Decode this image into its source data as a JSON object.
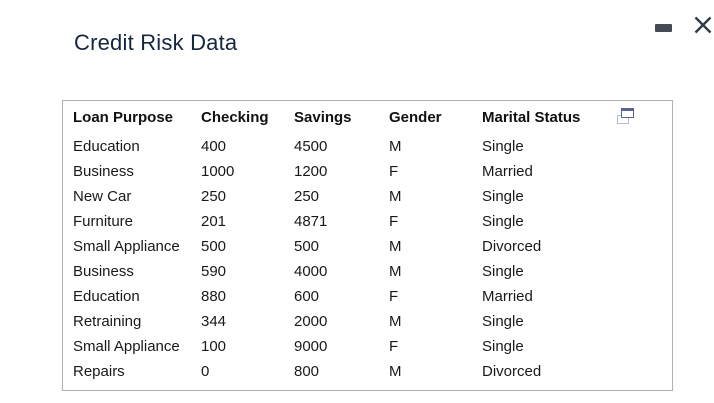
{
  "window": {
    "title": "Credit Risk Data",
    "controls": {
      "minimize_label": "Minimize",
      "close_label": "Close"
    }
  },
  "table": {
    "columns": [
      "Loan Purpose",
      "Checking",
      "Savings",
      "Gender",
      "Marital Status"
    ],
    "rows": [
      [
        "Education",
        "400",
        "4500",
        "M",
        "Single"
      ],
      [
        "Business",
        "1000",
        "1200",
        "F",
        "Married"
      ],
      [
        "New Car",
        "250",
        "250",
        "M",
        "Single"
      ],
      [
        "Furniture",
        "201",
        "4871",
        "F",
        "Single"
      ],
      [
        "Small Appliance",
        "500",
        "500",
        "M",
        "Divorced"
      ],
      [
        "Business",
        "590",
        "4000",
        "M",
        "Single"
      ],
      [
        "Education",
        "880",
        "600",
        "F",
        "Married"
      ],
      [
        "Retraining",
        "344",
        "2000",
        "M",
        "Single"
      ],
      [
        "Small Appliance",
        "100",
        "9000",
        "F",
        "Single"
      ],
      [
        "Repairs",
        "0",
        "800",
        "M",
        "Divorced"
      ]
    ],
    "header_icon": "open-in-new-window-icon"
  },
  "colors": {
    "title_text": "#14273f",
    "body_text": "#191919",
    "table_border": "#b0b0b0",
    "control_icon": "#2f3c49",
    "icon_front_border": "#5a648f",
    "icon_back_border": "#b7bdd6"
  }
}
